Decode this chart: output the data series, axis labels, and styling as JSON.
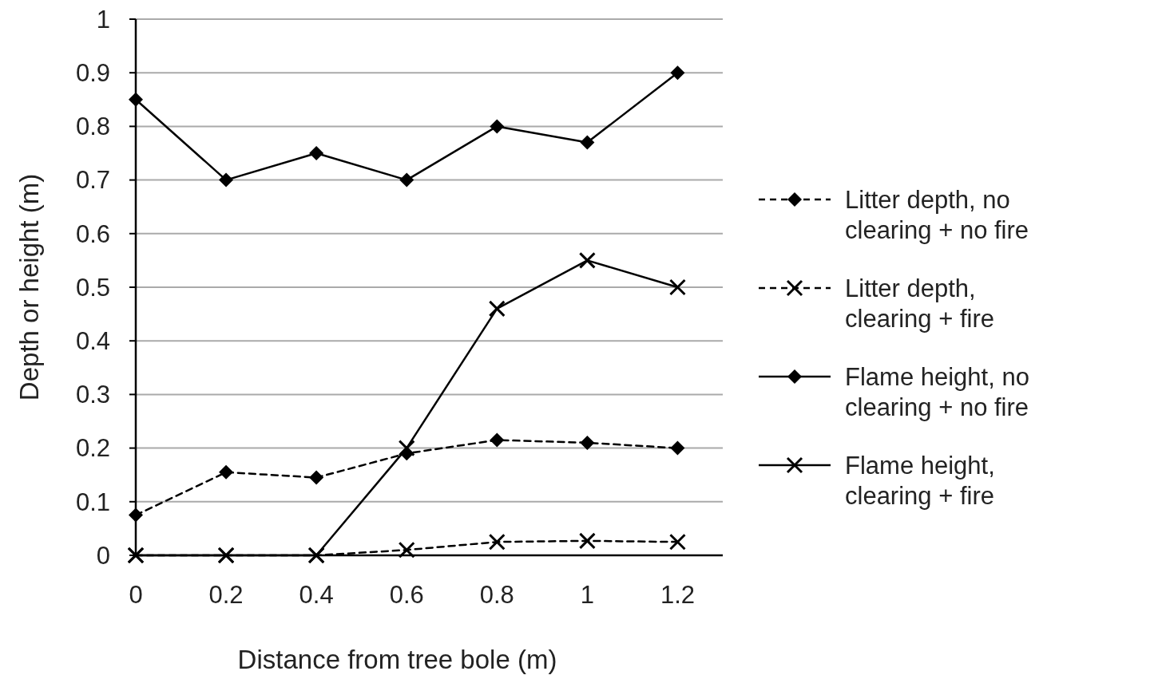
{
  "chart_data": {
    "type": "line",
    "xlabel": "Distance from tree bole (m)",
    "ylabel": "Depth or height (m)",
    "x": [
      0,
      0.2,
      0.4,
      0.6,
      0.8,
      1,
      1.2
    ],
    "xlim": [
      0,
      1.3
    ],
    "xticks": [
      0,
      0.2,
      0.4,
      0.6,
      0.8,
      1,
      1.2
    ],
    "ylim": [
      0,
      1
    ],
    "yticks": [
      0,
      0.1,
      0.2,
      0.3,
      0.4,
      0.5,
      0.6,
      0.7,
      0.8,
      0.9,
      1
    ],
    "grid": "y",
    "legend": "right",
    "series": [
      {
        "name": "Litter depth, no clearing + no fire",
        "color": "#000000",
        "marker": "diamond",
        "line_style": "dashed",
        "values": [
          0.075,
          0.155,
          0.145,
          0.19,
          0.215,
          0.21,
          0.2
        ]
      },
      {
        "name": "Litter depth, clearing + fire",
        "color": "#000000",
        "marker": "cross",
        "line_style": "dashed",
        "values": [
          0,
          0,
          0,
          0.01,
          0.025,
          0.027,
          0.025
        ]
      },
      {
        "name": "Flame height, no clearing + no fire",
        "color": "#000000",
        "marker": "diamond",
        "line_style": "solid",
        "values": [
          0.85,
          0.7,
          0.75,
          0.7,
          0.8,
          0.77,
          0.9
        ]
      },
      {
        "name": "Flame height, clearing + fire",
        "color": "#000000",
        "marker": "cross",
        "line_style": "solid",
        "values": [
          0,
          0,
          0,
          0.2,
          0.46,
          0.55,
          0.5
        ]
      }
    ]
  }
}
